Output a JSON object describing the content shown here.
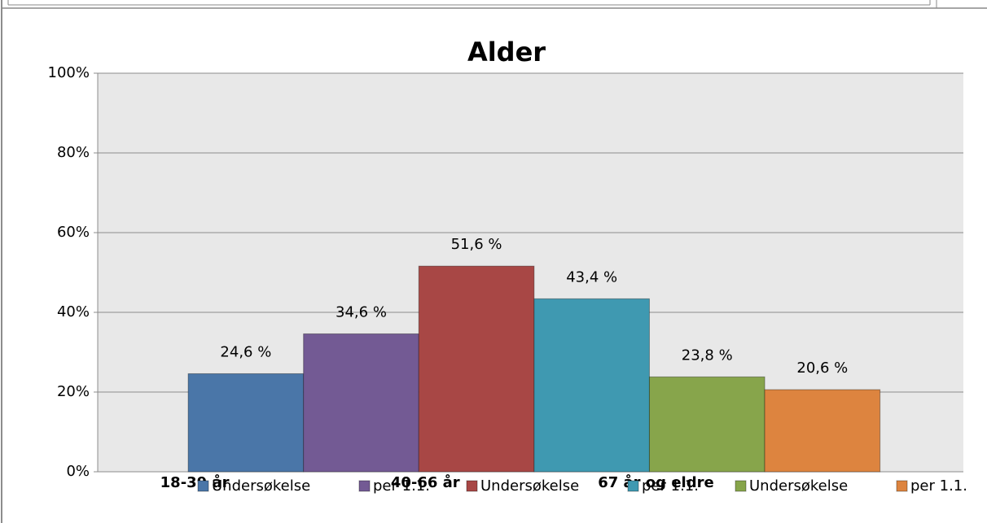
{
  "chart_data": {
    "type": "bar",
    "title": "Alder",
    "categories": [
      "18-39 år",
      null,
      "40-66 år",
      null,
      "67 år og eldre",
      null
    ],
    "series": [
      {
        "name": "Undersøkelse",
        "color": "#4a76a8",
        "values": [
          24.6,
          null,
          null,
          null,
          null,
          null
        ],
        "value_labels": [
          "24,6 %",
          null,
          null,
          null,
          null,
          null
        ]
      },
      {
        "name": "per 1.1.",
        "color": "#735a94",
        "values": [
          null,
          34.6,
          null,
          null,
          null,
          null
        ],
        "value_labels": [
          null,
          "34,6 %",
          null,
          null,
          null,
          null
        ]
      },
      {
        "name": "Undersøkelse",
        "color": "#a84745",
        "values": [
          null,
          null,
          51.6,
          null,
          null,
          null
        ],
        "value_labels": [
          null,
          null,
          "51,6 %",
          null,
          null,
          null
        ]
      },
      {
        "name": "per 1.1.",
        "color": "#3f99b1",
        "values": [
          null,
          null,
          null,
          43.4,
          null,
          null
        ],
        "value_labels": [
          null,
          null,
          null,
          "43,4 %",
          null,
          null
        ]
      },
      {
        "name": "Undersøkelse",
        "color": "#87a54b",
        "values": [
          null,
          null,
          null,
          null,
          23.8,
          null
        ],
        "value_labels": [
          null,
          null,
          null,
          null,
          "23,8 %",
          null
        ]
      },
      {
        "name": "per 1.1.",
        "color": "#dd843f",
        "values": [
          null,
          null,
          null,
          null,
          null,
          20.6
        ],
        "value_labels": [
          null,
          null,
          null,
          null,
          null,
          "20,6 %"
        ]
      }
    ],
    "ylim": [
      0,
      100
    ],
    "yticks": [
      {
        "value": 0,
        "label": "0%"
      },
      {
        "value": 20,
        "label": "20%"
      },
      {
        "value": 40,
        "label": "40%"
      },
      {
        "value": 60,
        "label": "60%"
      },
      {
        "value": 80,
        "label": "80%"
      },
      {
        "value": 100,
        "label": "100%"
      }
    ],
    "grid": true,
    "legend": "bottom"
  }
}
